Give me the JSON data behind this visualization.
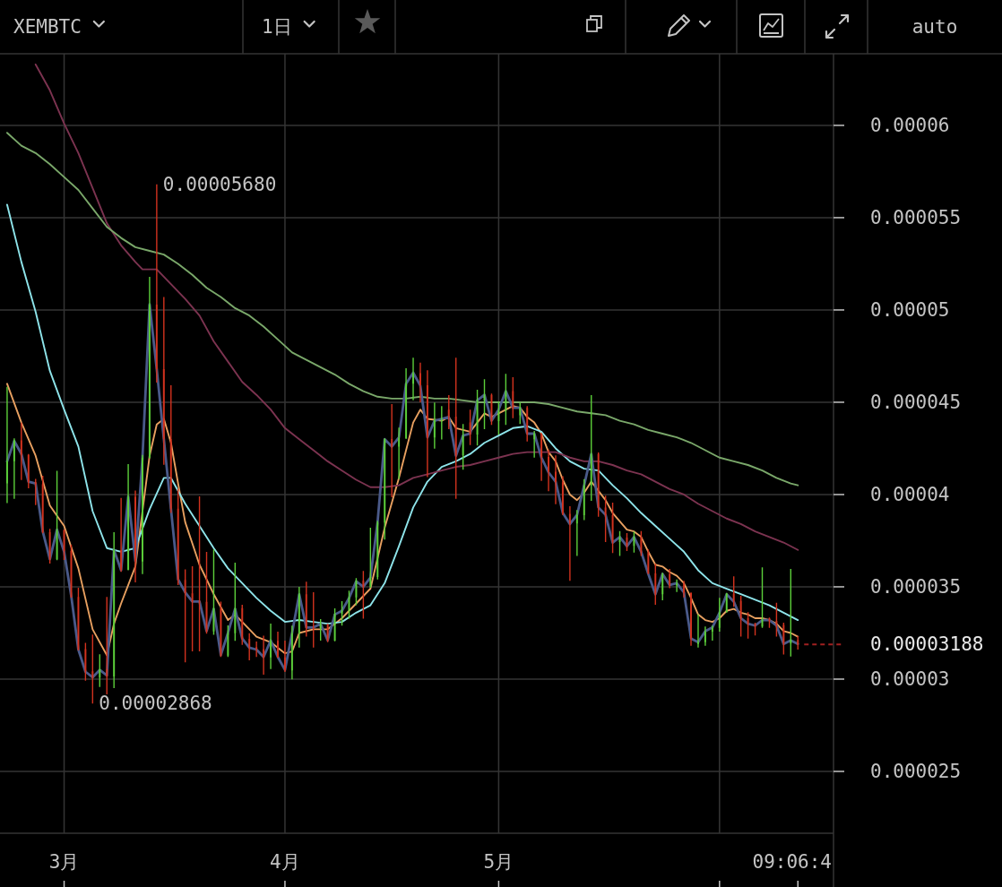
{
  "chart_data": {
    "type": "candlestick",
    "title": "XEMBTC",
    "subtitle": "1日",
    "x": [
      "--02-21",
      "--02-22",
      "--02-23",
      "--02-24",
      "--02-25",
      "--02-26",
      "--02-27",
      "--02-28",
      "--03-01",
      "--03-02",
      "--03-03",
      "--03-04",
      "--03-05",
      "--03-06",
      "--03-07",
      "--03-08",
      "--03-09",
      "--03-10",
      "--03-11",
      "--03-12",
      "--03-13",
      "--03-14",
      "--03-15",
      "--03-16",
      "--03-17",
      "--03-18",
      "--03-19",
      "--03-20",
      "--03-21",
      "--03-22",
      "--03-23",
      "--03-24",
      "--03-25",
      "--03-26",
      "--03-27",
      "--03-28",
      "--03-29",
      "--03-30",
      "--03-31",
      "--04-01",
      "--04-02",
      "--04-03",
      "--04-04",
      "--04-05",
      "--04-06",
      "--04-07",
      "--04-08",
      "--04-09",
      "--04-10",
      "--04-11",
      "--04-12",
      "--04-13",
      "--04-14",
      "--04-15",
      "--04-16",
      "--04-17",
      "--04-18",
      "--04-19",
      "--04-20",
      "--04-21",
      "--04-22",
      "--04-23",
      "--04-24",
      "--04-25",
      "--04-26",
      "--04-27",
      "--04-28",
      "--04-29",
      "--04-30",
      "--05-01",
      "--05-02",
      "--05-03",
      "--05-04",
      "--05-05",
      "--05-06",
      "--05-07",
      "--05-08",
      "--05-09",
      "--05-10",
      "--05-11",
      "--05-12",
      "--05-13",
      "--05-14",
      "--05-15",
      "--05-16",
      "--05-17",
      "--05-18",
      "--05-19",
      "--05-20",
      "--05-21",
      "--05-22",
      "--05-23",
      "--05-24",
      "--05-25",
      "--05-26",
      "--05-27",
      "--05-28",
      "--05-29",
      "--05-30",
      "--05-31",
      "--06-01",
      "--06-02",
      "--06-03",
      "--06-04",
      "--06-05",
      "--06-06",
      "--06-07",
      "--06-08",
      "--06-09",
      "--06-10",
      "--06-11",
      "--06-12"
    ],
    "ohlc": [
      [
        4.06e-05,
        4.584e-05,
        3.954e-05,
        4.181e-05
      ],
      [
        4.181e-05,
        4.305e-05,
        3.977e-05,
        4.294e-05
      ],
      [
        4.294e-05,
        4.389e-05,
        4.079e-05,
        4.215e-05
      ],
      [
        4.215e-05,
        4.22e-05,
        4.034e-05,
        4.068e-05
      ],
      [
        4.068e-05,
        4.085e-05,
        3.943e-05,
        4.056e-05
      ],
      [
        4.056e-05,
        4.102e-05,
        3.79e-05,
        3.796e-05
      ],
      [
        3.796e-05,
        3.814e-05,
        3.626e-05,
        3.649e-05
      ],
      [
        3.649e-05,
        4.129e-05,
        3.644e-05,
        3.807e-05
      ],
      [
        3.807e-05,
        3.81e-05,
        3.645e-05,
        3.694e-05
      ],
      [
        3.694e-05,
        3.728e-05,
        3.44e-05,
        3.445e-05
      ],
      [
        3.445e-05,
        3.495e-05,
        3.155e-05,
        3.162e-05
      ],
      [
        3.162e-05,
        3.196e-05,
        2.992e-05,
        3.042e-05
      ],
      [
        3.042e-05,
        3.241e-05,
        2.868e-05,
        3.008e-05
      ],
      [
        3.008e-05,
        3.135e-05,
        2.958e-05,
        3.053e-05
      ],
      [
        3.053e-05,
        3.445e-05,
        2.917e-05,
        3.015e-05
      ],
      [
        3.015e-05,
        3.796e-05,
        2.951e-05,
        3.699e-05
      ],
      [
        3.699e-05,
        3.982e-05,
        3.581e-05,
        3.592e-05
      ],
      [
        3.592e-05,
        4.165e-05,
        3.59e-05,
        3.988e-05
      ],
      [
        3.988e-05,
        4.022e-05,
        3.524e-05,
        3.637e-05
      ],
      [
        3.637e-05,
        4.215e-05,
        3.569e-05,
        4.2e-05
      ],
      [
        4.2e-05,
        5.179e-05,
        4.195e-05,
        5.029e-05
      ],
      [
        5.029e-05,
        5.68e-05,
        4.607e-05,
        4.679e-05
      ],
      [
        4.679e-05,
        5.07e-05,
        4.161e-05,
        4.301e-05
      ],
      [
        4.301e-05,
        4.592e-05,
        3.9e-05,
        3.923e-05
      ],
      [
        3.923e-05,
        4.031e-05,
        3.51e-05,
        3.537e-05
      ],
      [
        3.537e-05,
        3.594e-05,
        3.091e-05,
        3.465e-05
      ],
      [
        3.465e-05,
        3.612e-05,
        3.15e-05,
        3.42e-05
      ],
      [
        3.42e-05,
        3.99e-05,
        3.15e-05,
        3.418e-05
      ],
      [
        3.418e-05,
        3.689e-05,
        3.246e-05,
        3.258e-05
      ],
      [
        3.258e-05,
        3.702e-05,
        3.24e-05,
        3.384e-05
      ],
      [
        3.384e-05,
        3.42e-05,
        3.12e-05,
        3.127e-05
      ],
      [
        3.127e-05,
        3.291e-05,
        3.12e-05,
        3.249e-05
      ],
      [
        3.249e-05,
        3.631e-05,
        3.208e-05,
        3.384e-05
      ],
      [
        3.384e-05,
        3.403e-05,
        3.186e-05,
        3.218e-05
      ],
      [
        3.218e-05,
        3.249e-05,
        3.102e-05,
        3.174e-05
      ],
      [
        3.174e-05,
        3.204e-05,
        3.12e-05,
        3.163e-05
      ],
      [
        3.163e-05,
        3.235e-05,
        3.024e-05,
        3.118e-05
      ],
      [
        3.118e-05,
        3.301e-05,
        3.055e-05,
        3.208e-05
      ],
      [
        3.208e-05,
        3.257e-05,
        3.115e-05,
        3.118e-05
      ],
      [
        3.118e-05,
        3.209e-05,
        3.039e-05,
        3.047e-05
      ],
      [
        3.047e-05,
        3.29e-05,
        2.999e-05,
        3.249e-05
      ],
      [
        3.249e-05,
        3.5e-05,
        3.171e-05,
        3.46e-05
      ],
      [
        3.46e-05,
        3.528e-05,
        3.23e-05,
        3.277e-05
      ],
      [
        3.277e-05,
        3.471e-05,
        3.171e-05,
        3.275e-05
      ],
      [
        3.275e-05,
        3.325e-05,
        3.209e-05,
        3.298e-05
      ],
      [
        3.298e-05,
        3.3e-05,
        3.2e-05,
        3.209e-05
      ],
      [
        3.209e-05,
        3.383e-05,
        3.205e-05,
        3.354e-05
      ],
      [
        3.354e-05,
        3.422e-05,
        3.29e-05,
        3.37e-05
      ],
      [
        3.37e-05,
        3.479e-05,
        3.327e-05,
        3.443e-05
      ],
      [
        3.443e-05,
        3.547e-05,
        3.4e-05,
        3.533e-05
      ],
      [
        3.533e-05,
        3.586e-05,
        3.327e-05,
        3.5e-05
      ],
      [
        3.5e-05,
        3.82e-05,
        3.495e-05,
        3.553e-05
      ],
      [
        3.553e-05,
        3.858e-05,
        3.54e-05,
        3.848e-05
      ],
      [
        3.848e-05,
        4.304e-05,
        3.756e-05,
        4.301e-05
      ],
      [
        4.301e-05,
        4.49e-05,
        3.985e-05,
        4.26e-05
      ],
      [
        4.26e-05,
        4.363e-05,
        4.083e-05,
        4.306e-05
      ],
      [
        4.306e-05,
        4.684e-05,
        4.301e-05,
        4.6e-05
      ],
      [
        4.6e-05,
        4.741e-05,
        4.511e-05,
        4.657e-05
      ],
      [
        4.657e-05,
        4.714e-05,
        4.5e-05,
        4.592e-05
      ],
      [
        4.592e-05,
        4.673e-05,
        4.094e-05,
        4.309e-05
      ],
      [
        4.309e-05,
        4.498e-05,
        4.249e-05,
        4.403e-05
      ],
      [
        4.403e-05,
        4.479e-05,
        4.298e-05,
        4.405e-05
      ],
      [
        4.46e-05,
        4.539e-05,
        4.354e-05,
        4.422e-05
      ],
      [
        4.422e-05,
        4.741e-05,
        3.977e-05,
        4.212e-05
      ],
      [
        4.212e-05,
        4.382e-05,
        4.134e-05,
        4.317e-05
      ],
      [
        4.39e-05,
        4.46e-05,
        4.268e-05,
        4.325e-05
      ],
      [
        4.325e-05,
        4.568e-05,
        4.265e-05,
        4.511e-05
      ],
      [
        4.511e-05,
        4.625e-05,
        4.354e-05,
        4.54e-05
      ],
      [
        4.54e-05,
        4.547e-05,
        4.377e-05,
        4.398e-05
      ],
      [
        4.398e-05,
        4.503e-05,
        4.325e-05,
        4.455e-05
      ],
      [
        4.455e-05,
        4.654e-05,
        4.377e-05,
        4.56e-05
      ],
      [
        4.56e-05,
        4.636e-05,
        4.414e-05,
        4.466e-05
      ],
      [
        4.43e-05,
        4.498e-05,
        4.382e-05,
        4.47e-05
      ],
      [
        4.47e-05,
        4.479e-05,
        4.288e-05,
        4.328e-05
      ],
      [
        4.3e-05,
        4.345e-05,
        4.2e-05,
        4.33e-05
      ],
      [
        4.33e-05,
        4.333e-05,
        4.074e-05,
        4.204e-05
      ],
      [
        4.204e-05,
        4.244e-05,
        4.018e-05,
        4.123e-05
      ],
      [
        4.123e-05,
        4.212e-05,
        3.948e-05,
        4.066e-05
      ],
      [
        4.066e-05,
        4.099e-05,
        3.888e-05,
        3.896e-05
      ],
      [
        3.896e-05,
        3.937e-05,
        3.533e-05,
        3.843e-05
      ],
      [
        3.843e-05,
        3.916e-05,
        3.667e-05,
        3.888e-05
      ],
      [
        3.888e-05,
        4.083e-05,
        3.861e-05,
        4.05e-05
      ],
      [
        4.05e-05,
        4.539e-05,
        3.966e-05,
        4.22e-05
      ],
      [
        4.22e-05,
        4.228e-05,
        3.88e-05,
        3.929e-05
      ],
      [
        3.929e-05,
        3.994e-05,
        3.743e-05,
        3.888e-05
      ],
      [
        3.888e-05,
        3.956e-05,
        3.683e-05,
        3.743e-05
      ],
      [
        3.743e-05,
        3.802e-05,
        3.667e-05,
        3.767e-05
      ],
      [
        3.767e-05,
        3.791e-05,
        3.694e-05,
        3.722e-05
      ],
      [
        3.722e-05,
        3.799e-05,
        3.686e-05,
        3.77e-05
      ],
      [
        3.77e-05,
        3.802e-05,
        3.667e-05,
        3.686e-05
      ],
      [
        3.686e-05,
        3.702e-05,
        3.569e-05,
        3.573e-05
      ],
      [
        3.573e-05,
        3.625e-05,
        3.403e-05,
        3.46e-05
      ],
      [
        3.46e-05,
        3.576e-05,
        3.427e-05,
        3.569e-05
      ],
      [
        3.569e-05,
        3.597e-05,
        3.492e-05,
        3.508e-05
      ],
      [
        3.508e-05,
        3.54e-05,
        3.472e-05,
        3.516e-05
      ],
      [
        3.516e-05,
        3.533e-05,
        3.443e-05,
        3.467e-05
      ],
      [
        3.467e-05,
        3.47e-05,
        3.181e-05,
        3.222e-05
      ],
      [
        3.19e-05,
        3.35e-05,
        3.171e-05,
        3.2e-05
      ],
      [
        3.2e-05,
        3.285e-05,
        3.181e-05,
        3.257e-05
      ],
      [
        3.257e-05,
        3.29e-05,
        3.209e-05,
        3.278e-05
      ],
      [
        3.278e-05,
        3.44e-05,
        3.257e-05,
        3.363e-05
      ],
      [
        3.363e-05,
        3.467e-05,
        3.36e-05,
        3.463e-05
      ],
      [
        3.463e-05,
        3.557e-05,
        3.392e-05,
        3.424e-05
      ],
      [
        3.424e-05,
        3.451e-05,
        3.23e-05,
        3.33e-05
      ],
      [
        3.33e-05,
        3.363e-05,
        3.22e-05,
        3.298e-05
      ],
      [
        3.298e-05,
        3.306e-05,
        3.236e-05,
        3.285e-05
      ],
      [
        3.285e-05,
        3.605e-05,
        3.278e-05,
        3.32e-05
      ],
      [
        3.33e-05,
        3.333e-05,
        3.278e-05,
        3.315e-05
      ],
      [
        3.315e-05,
        3.414e-05,
        3.23e-05,
        3.294e-05
      ],
      [
        3.294e-05,
        3.306e-05,
        3.133e-05,
        3.193e-05
      ],
      [
        3.193e-05,
        3.597e-05,
        3.123e-05,
        3.212e-05
      ],
      [
        3.212e-05,
        3.233e-05,
        3.16e-05,
        3.188e-05
      ]
    ],
    "colors": [
      "#5ccf3a",
      "#5ccf3a",
      "#d2321e",
      "#d2321e",
      "#d2321e",
      "#d2321e",
      "#d2321e",
      "#5ccf3a",
      "#d2321e",
      "#d2321e",
      "#d2321e",
      "#d2321e",
      "#d2321e",
      "#5ccf3a",
      "#d2321e",
      "#5ccf3a",
      "#d2321e",
      "#5ccf3a",
      "#d2321e",
      "#5ccf3a",
      "#5ccf3a",
      "#d2321e",
      "#d2321e",
      "#d2321e",
      "#d2321e",
      "#d2321e",
      "#d2321e",
      "#d2321e",
      "#d2321e",
      "#5ccf3a",
      "#d2321e",
      "#5ccf3a",
      "#5ccf3a",
      "#d2321e",
      "#d2321e",
      "#d2321e",
      "#d2321e",
      "#5ccf3a",
      "#d2321e",
      "#d2321e",
      "#5ccf3a",
      "#5ccf3a",
      "#d2321e",
      "#d2321e",
      "#5ccf3a",
      "#d2321e",
      "#5ccf3a",
      "#5ccf3a",
      "#5ccf3a",
      "#5ccf3a",
      "#d2321e",
      "#5ccf3a",
      "#5ccf3a",
      "#5ccf3a",
      "#d2321e",
      "#5ccf3a",
      "#5ccf3a",
      "#5ccf3a",
      "#d2321e",
      "#d2321e",
      "#5ccf3a",
      "#5ccf3a",
      "#d2321e",
      "#d2321e",
      "#5ccf3a",
      "#d2321e",
      "#5ccf3a",
      "#5ccf3a",
      "#d2321e",
      "#5ccf3a",
      "#5ccf3a",
      "#d2321e",
      "#5ccf3a",
      "#d2321e",
      "#5ccf3a",
      "#d2321e",
      "#d2321e",
      "#d2321e",
      "#d2321e",
      "#d2321e",
      "#5ccf3a",
      "#5ccf3a",
      "#5ccf3a",
      "#d2321e",
      "#d2321e",
      "#d2321e",
      "#5ccf3a",
      "#d2321e",
      "#5ccf3a",
      "#d2321e",
      "#d2321e",
      "#d2321e",
      "#5ccf3a",
      "#d2321e",
      "#5ccf3a",
      "#d2321e",
      "#d2321e",
      "#5ccf3a",
      "#5ccf3a",
      "#5ccf3a",
      "#5ccf3a",
      "#5ccf3a",
      "#d2321e",
      "#d2321e",
      "#d2321e",
      "#d2321e",
      "#5ccf3a",
      "#d2321e",
      "#d2321e",
      "#d2321e",
      "#5ccf3a",
      "#d2321e"
    ],
    "series": [
      {
        "type": "line",
        "color": "#e8a060",
        "x": [
          "--02-21",
          "--02-23",
          "--02-25",
          "--02-27",
          "--03-01",
          "--03-03",
          "--03-05",
          "--03-07",
          "--03-08",
          "--03-09",
          "--03-11",
          "--03-13",
          "--03-14",
          "--03-15",
          "--03-16",
          "--03-17",
          "--03-18",
          "--03-20",
          "--03-22",
          "--03-24",
          "--03-25",
          "--03-26",
          "--03-28",
          "--03-30",
          "--04-01",
          "--04-02",
          "--04-03",
          "--04-05",
          "--04-07",
          "--04-09",
          "--04-11",
          "--04-13",
          "--04-15",
          "--04-17",
          "--04-19",
          "--04-20",
          "--04-21",
          "--04-23",
          "--04-24",
          "--04-25",
          "--04-27",
          "--04-29",
          "--04-30",
          "--05-01",
          "--05-03",
          "--05-04",
          "--05-05",
          "--05-06",
          "--05-07",
          "--05-08",
          "--05-09",
          "--05-10",
          "--05-11",
          "--05-12",
          "--05-13",
          "--05-14",
          "--05-15",
          "--05-16",
          "--05-17",
          "--05-19",
          "--05-20",
          "--05-21",
          "--05-22",
          "--05-23",
          "--05-24",
          "--05-25",
          "--05-26",
          "--05-27",
          "--05-28",
          "--05-29",
          "--05-30",
          "--05-31",
          "--06-01",
          "--06-02",
          "--06-03",
          "--06-04",
          "--06-05",
          "--06-06",
          "--06-07",
          "--06-08",
          "--06-09",
          "--06-10",
          "--06-11",
          "--06-12"
        ],
        "values": [
          4.6e-05,
          4.39e-05,
          4.21e-05,
          3.94e-05,
          3.83e-05,
          3.6e-05,
          3.27e-05,
          3.13e-05,
          3.3e-05,
          3.41e-05,
          3.61e-05,
          4.21e-05,
          4.38e-05,
          4.41e-05,
          4.28e-05,
          4.06e-05,
          3.85e-05,
          3.62e-05,
          3.46e-05,
          3.32e-05,
          3.35e-05,
          3.31e-05,
          3.23e-05,
          3.2e-05,
          3.14e-05,
          3.15e-05,
          3.25e-05,
          3.27e-05,
          3.27e-05,
          3.33e-05,
          3.41e-05,
          3.49e-05,
          3.82e-05,
          4.09e-05,
          4.39e-05,
          4.46e-05,
          4.41e-05,
          4.4e-05,
          4.42e-05,
          4.36e-05,
          4.34e-05,
          4.44e-05,
          4.42e-05,
          4.44e-05,
          4.48e-05,
          4.47e-05,
          4.42e-05,
          4.39e-05,
          4.33e-05,
          4.23e-05,
          4.18e-05,
          4.08e-05,
          4e-05,
          3.97e-05,
          4.01e-05,
          4.07e-05,
          4.02e-05,
          3.97e-05,
          3.9e-05,
          3.81e-05,
          3.8e-05,
          3.77e-05,
          3.69e-05,
          3.62e-05,
          3.61e-05,
          3.58e-05,
          3.56e-05,
          3.52e-05,
          3.44e-05,
          3.35e-05,
          3.32e-05,
          3.31e-05,
          3.33e-05,
          3.37e-05,
          3.38e-05,
          3.36e-05,
          3.35e-05,
          3.33e-05,
          3.33e-05,
          3.32e-05,
          3.3e-05,
          3.26e-05,
          3.25e-05,
          3.23e-05
        ]
      },
      {
        "type": "line",
        "color": "#8ee4ea",
        "x": [
          "--02-21",
          "--02-23",
          "--02-25",
          "--02-27",
          "--03-01",
          "--03-03",
          "--03-05",
          "--03-07",
          "--03-09",
          "--03-11",
          "--03-13",
          "--03-15",
          "--03-16",
          "--03-18",
          "--03-20",
          "--03-22",
          "--03-24",
          "--03-26",
          "--03-28",
          "--03-30",
          "--04-01",
          "--04-03",
          "--04-05",
          "--04-07",
          "--04-09",
          "--04-11",
          "--04-13",
          "--04-15",
          "--04-17",
          "--04-19",
          "--04-21",
          "--04-23",
          "--04-25",
          "--04-27",
          "--04-29",
          "--05-01",
          "--05-03",
          "--05-05",
          "--05-07",
          "--05-09",
          "--05-11",
          "--05-13",
          "--05-15",
          "--05-17",
          "--05-19",
          "--05-21",
          "--05-23",
          "--05-25",
          "--05-27",
          "--05-29",
          "--05-31",
          "--06-02",
          "--06-04",
          "--06-06",
          "--06-08",
          "--06-10",
          "--06-12"
        ],
        "values": [
          5.57e-05,
          5.26e-05,
          4.99e-05,
          4.67e-05,
          4.46e-05,
          4.26e-05,
          3.91e-05,
          3.71e-05,
          3.69e-05,
          3.71e-05,
          3.92e-05,
          4.09e-05,
          4.09e-05,
          3.95e-05,
          3.83e-05,
          3.71e-05,
          3.6e-05,
          3.52e-05,
          3.44e-05,
          3.37e-05,
          3.31e-05,
          3.32e-05,
          3.31e-05,
          3.3e-05,
          3.31e-05,
          3.36e-05,
          3.4e-05,
          3.52e-05,
          3.72e-05,
          3.93e-05,
          4.07e-05,
          4.15e-05,
          4.18e-05,
          4.22e-05,
          4.28e-05,
          4.32e-05,
          4.36e-05,
          4.37e-05,
          4.34e-05,
          4.25e-05,
          4.18e-05,
          4.14e-05,
          4.13e-05,
          4.05e-05,
          3.98e-05,
          3.9e-05,
          3.83e-05,
          3.76e-05,
          3.69e-05,
          3.59e-05,
          3.52e-05,
          3.49e-05,
          3.46e-05,
          3.43e-05,
          3.4e-05,
          3.36e-05,
          3.32e-05
        ]
      },
      {
        "type": "line",
        "color": "#7c3350",
        "x": [
          "--02-25",
          "--02-27",
          "--03-01",
          "--03-03",
          "--03-05",
          "--03-07",
          "--03-09",
          "--03-11",
          "--03-12",
          "--03-14",
          "--03-16",
          "--03-18",
          "--03-20",
          "--03-22",
          "--03-24",
          "--03-26",
          "--03-28",
          "--03-30",
          "--04-01",
          "--04-03",
          "--04-05",
          "--04-07",
          "--04-09",
          "--04-11",
          "--04-13",
          "--04-15",
          "--04-17",
          "--04-19",
          "--04-21",
          "--04-23",
          "--04-25",
          "--04-27",
          "--04-29",
          "--05-01",
          "--05-03",
          "--05-05",
          "--05-07",
          "--05-09",
          "--05-11",
          "--05-13",
          "--05-15",
          "--05-17",
          "--05-19",
          "--05-21",
          "--05-23",
          "--05-25",
          "--05-27",
          "--05-29",
          "--05-31",
          "--06-02",
          "--06-04",
          "--06-06",
          "--06-08",
          "--06-10",
          "--06-12"
        ],
        "values": [
          6.33e-05,
          6.19e-05,
          6.01e-05,
          5.85e-05,
          5.66e-05,
          5.47e-05,
          5.35e-05,
          5.26e-05,
          5.22e-05,
          5.22e-05,
          5.14e-05,
          5.06e-05,
          4.97e-05,
          4.83e-05,
          4.72e-05,
          4.61e-05,
          4.54e-05,
          4.46e-05,
          4.36e-05,
          4.3e-05,
          4.24e-05,
          4.18e-05,
          4.13e-05,
          4.08e-05,
          4.04e-05,
          4.04e-05,
          4.05e-05,
          4.09e-05,
          4.11e-05,
          4.13e-05,
          4.15e-05,
          4.16e-05,
          4.18e-05,
          4.2e-05,
          4.22e-05,
          4.23e-05,
          4.23e-05,
          4.23e-05,
          4.2e-05,
          4.18e-05,
          4.18e-05,
          4.16e-05,
          4.13e-05,
          4.11e-05,
          4.07e-05,
          4.03e-05,
          4e-05,
          3.95e-05,
          3.91e-05,
          3.87e-05,
          3.84e-05,
          3.8e-05,
          3.77e-05,
          3.74e-05,
          3.7e-05
        ]
      },
      {
        "type": "line",
        "color": "#7aa86a",
        "x": [
          "--02-21",
          "--02-23",
          "--02-25",
          "--02-27",
          "--03-01",
          "--03-03",
          "--03-05",
          "--03-07",
          "--03-09",
          "--03-11",
          "--03-13",
          "--03-15",
          "--03-17",
          "--03-19",
          "--03-21",
          "--03-23",
          "--03-25",
          "--03-27",
          "--03-29",
          "--03-31",
          "--04-02",
          "--04-04",
          "--04-06",
          "--04-08",
          "--04-10",
          "--04-12",
          "--04-14",
          "--04-16",
          "--04-18",
          "--04-20",
          "--04-22",
          "--04-24",
          "--04-26",
          "--04-28",
          "--04-30",
          "--05-02",
          "--05-04",
          "--05-06",
          "--05-08",
          "--05-10",
          "--05-12",
          "--05-14",
          "--05-16",
          "--05-18",
          "--05-20",
          "--05-22",
          "--05-24",
          "--05-26",
          "--05-28",
          "--05-30",
          "--06-01",
          "--06-03",
          "--06-05",
          "--06-07",
          "--06-09",
          "--06-11",
          "--06-12"
        ],
        "values": [
          5.96e-05,
          5.89e-05,
          5.85e-05,
          5.79e-05,
          5.72e-05,
          5.65e-05,
          5.55e-05,
          5.45e-05,
          5.39e-05,
          5.34e-05,
          5.32e-05,
          5.3e-05,
          5.25e-05,
          5.19e-05,
          5.12e-05,
          5.07e-05,
          5.01e-05,
          4.97e-05,
          4.91e-05,
          4.84e-05,
          4.77e-05,
          4.73e-05,
          4.69e-05,
          4.65e-05,
          4.6e-05,
          4.56e-05,
          4.53e-05,
          4.52e-05,
          4.52e-05,
          4.53e-05,
          4.52e-05,
          4.52e-05,
          4.51e-05,
          4.5e-05,
          4.5e-05,
          4.5e-05,
          4.5e-05,
          4.5e-05,
          4.49e-05,
          4.47e-05,
          4.45e-05,
          4.44e-05,
          4.43e-05,
          4.4e-05,
          4.38e-05,
          4.35e-05,
          4.33e-05,
          4.31e-05,
          4.28e-05,
          4.24e-05,
          4.2e-05,
          4.18e-05,
          4.16e-05,
          4.13e-05,
          4.09e-05,
          4.06e-05,
          4.05e-05
        ]
      },
      {
        "type": "line",
        "color": "#4a5a8a",
        "values": [
          4.18e-05,
          4.29e-05,
          4.22e-05,
          4.07e-05,
          4.06e-05,
          3.8e-05,
          3.65e-05,
          3.81e-05,
          3.69e-05,
          3.45e-05,
          3.16e-05,
          3.04e-05,
          3.01e-05,
          3.05e-05,
          3.02e-05,
          3.7e-05,
          3.59e-05,
          3.99e-05,
          3.64e-05,
          4.2e-05,
          5.03e-05,
          4.68e-05,
          4.3e-05,
          3.92e-05,
          3.54e-05,
          3.47e-05,
          3.42e-05,
          3.42e-05,
          3.26e-05,
          3.38e-05,
          3.13e-05,
          3.25e-05,
          3.38e-05,
          3.22e-05,
          3.17e-05,
          3.16e-05,
          3.12e-05,
          3.21e-05,
          3.12e-05,
          3.05e-05,
          3.25e-05,
          3.46e-05,
          3.28e-05,
          3.28e-05,
          3.3e-05,
          3.21e-05,
          3.35e-05,
          3.37e-05,
          3.44e-05,
          3.53e-05,
          3.5e-05,
          3.55e-05,
          3.85e-05,
          4.3e-05,
          4.26e-05,
          4.31e-05,
          4.6e-05,
          4.66e-05,
          4.59e-05,
          4.31e-05,
          4.4e-05,
          4.41e-05,
          4.42e-05,
          4.21e-05,
          4.32e-05,
          4.33e-05,
          4.51e-05,
          4.54e-05,
          4.4e-05,
          4.46e-05,
          4.56e-05,
          4.47e-05,
          4.47e-05,
          4.33e-05,
          4.33e-05,
          4.2e-05,
          4.12e-05,
          4.07e-05,
          3.9e-05,
          3.84e-05,
          3.89e-05,
          4.05e-05,
          4.22e-05,
          3.93e-05,
          3.89e-05,
          3.74e-05,
          3.77e-05,
          3.72e-05,
          3.77e-05,
          3.69e-05,
          3.57e-05,
          3.46e-05,
          3.57e-05,
          3.51e-05,
          3.52e-05,
          3.47e-05,
          3.22e-05,
          3.2e-05,
          3.26e-05,
          3.28e-05,
          3.36e-05,
          3.46e-05,
          3.42e-05,
          3.33e-05,
          3.3e-05,
          3.29e-05,
          3.32e-05,
          3.32e-05,
          3.29e-05,
          3.19e-05,
          3.21e-05,
          3.19e-05
        ]
      }
    ],
    "xlim": [
      "--02-20",
      "--06-17"
    ],
    "xticks": [
      {
        "value": "--03-01",
        "label": "3月"
      },
      {
        "value": "--04-01",
        "label": "4月"
      },
      {
        "value": "--05-01",
        "label": "5月"
      },
      {
        "value": "--06-01",
        "label": null
      }
    ],
    "ylim": [
      2.165e-05,
      6.388e-05
    ],
    "yticks": [
      {
        "value": 2.5e-05,
        "label": "0.000025"
      },
      {
        "value": 3e-05,
        "label": "0.00003"
      },
      {
        "value": 3.5e-05,
        "label": "0.000035"
      },
      {
        "value": 4e-05,
        "label": "0.00004"
      },
      {
        "value": 4.5e-05,
        "label": "0.000045"
      },
      {
        "value": 5e-05,
        "label": "0.00005"
      },
      {
        "value": 5.5e-05,
        "label": "0.000055"
      },
      {
        "value": 6e-05,
        "label": "0.00006"
      }
    ],
    "grid": true,
    "ref_lines": [
      {
        "axis": "y",
        "value": 3.188e-05,
        "label": "0.00003188",
        "color": "#a02020",
        "line_style": "dashed"
      }
    ],
    "annotations": [
      {
        "text": "0.00005680",
        "x": "--03-14",
        "y": 5.68e-05
      },
      {
        "text": "0.00002868",
        "x": "--03-05",
        "y": 2.868e-05
      },
      {
        "text": "09:06:4",
        "x": "--06-12"
      },
      "auto"
    ]
  }
}
